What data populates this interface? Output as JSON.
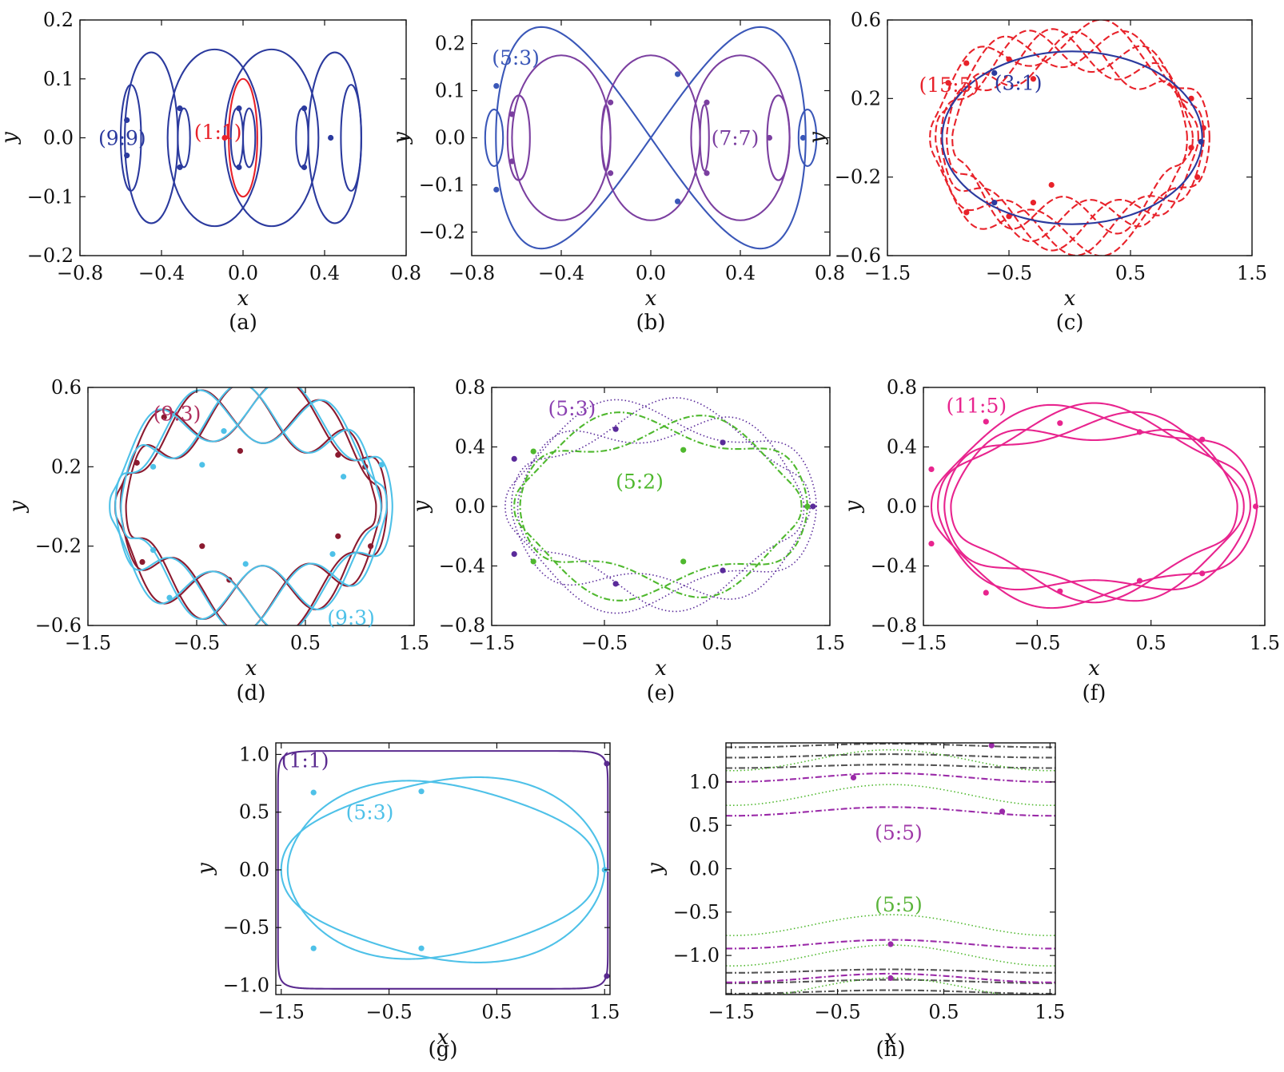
{
  "chart_data": [
    {
      "id": "a",
      "type": "line",
      "caption": "(a)",
      "xlabel": "x",
      "ylabel": "y",
      "xlim": [
        -0.8,
        0.8
      ],
      "ylim": [
        -0.2,
        0.2
      ],
      "xticks": [
        "−0.8",
        "−0.4",
        "0.0",
        "0.4",
        "0.8"
      ],
      "yticks": [
        "0.2",
        "0.1",
        "0.0",
        "−0.1",
        "−0.2"
      ],
      "labels": [
        {
          "text": "(9:9)",
          "x": -0.71,
          "y": 0.0,
          "color": "#2b3a9e"
        },
        {
          "text": "(1:1)",
          "x": -0.24,
          "y": 0.01,
          "color": "#e8222a"
        }
      ],
      "series": [
        {
          "color": "#2b3a9e",
          "kind": "ellipses",
          "ellipses": [
            [
              -0.45,
              0,
              0.13,
              0.145
            ],
            [
              -0.14,
              0,
              0.23,
              0.15
            ],
            [
              0.14,
              0,
              0.23,
              0.15
            ],
            [
              0.45,
              0,
              0.13,
              0.145
            ],
            [
              -0.55,
              0,
              0.05,
              0.09
            ],
            [
              0.53,
              0,
              0.05,
              0.09
            ],
            [
              -0.29,
              0,
              0.03,
              0.05
            ],
            [
              0.29,
              0,
              0.03,
              0.05
            ],
            [
              -0.03,
              0,
              0.03,
              0.05
            ],
            [
              0.03,
              0,
              0.03,
              0.05
            ]
          ],
          "points": [
            [
              -0.57,
              0.03
            ],
            [
              -0.57,
              -0.03
            ],
            [
              -0.31,
              0.05
            ],
            [
              -0.31,
              -0.05
            ],
            [
              0.3,
              0.05
            ],
            [
              0.3,
              -0.05
            ],
            [
              -0.02,
              0.05
            ],
            [
              -0.02,
              -0.05
            ],
            [
              0.43,
              0
            ]
          ]
        },
        {
          "color": "#e8222a",
          "kind": "ellipses",
          "ellipses": [
            [
              0.0,
              0,
              0.07,
              0.1
            ]
          ],
          "points": [
            [
              -0.09,
              0.0
            ]
          ]
        }
      ]
    },
    {
      "id": "b",
      "type": "line",
      "caption": "(b)",
      "xlabel": "x",
      "ylabel": "y",
      "xlim": [
        -0.8,
        0.8
      ],
      "ylim": [
        -0.25,
        0.25
      ],
      "xticks": [
        "−0.8",
        "−0.4",
        "0.0",
        "0.4",
        "0.8"
      ],
      "yticks": [
        "0.2",
        "0.1",
        "0.0",
        "−0.1",
        "−0.2"
      ],
      "labels": [
        {
          "text": "(5:3)",
          "x": -0.71,
          "y": 0.17,
          "color": "#3a57b8"
        },
        {
          "text": "(7:7)",
          "x": 0.27,
          "y": 0.0,
          "color": "#7b3fa0"
        }
      ],
      "series": [
        {
          "color": "#3a57b8",
          "kind": "ellipses",
          "ellipses": [
            [
              -0.7,
              0,
              0.04,
              0.06
            ],
            [
              0.7,
              0,
              0.04,
              0.06
            ]
          ],
          "points": [
            [
              -0.69,
              0.11
            ],
            [
              -0.69,
              -0.11
            ],
            [
              0.68,
              0.0
            ],
            [
              0.12,
              0.135
            ],
            [
              0.12,
              -0.135
            ]
          ]
        },
        {
          "color": "#3a57b8",
          "kind": "figure8",
          "cx": 0.4,
          "rx": 0.4,
          "ry": 0.235
        },
        {
          "color": "#7b3fa0",
          "kind": "ellipses",
          "ellipses": [
            [
              -0.4,
              0,
              0.22,
              0.175
            ],
            [
              0.0,
              0,
              0.22,
              0.175
            ],
            [
              0.4,
              0,
              0.22,
              0.175
            ],
            [
              -0.59,
              0,
              0.05,
              0.09
            ],
            [
              0.57,
              0,
              0.05,
              0.09
            ],
            [
              -0.2,
              0,
              0.02,
              0.07
            ],
            [
              0.24,
              0,
              0.02,
              0.07
            ]
          ],
          "points": [
            [
              -0.62,
              0.05
            ],
            [
              -0.62,
              -0.05
            ],
            [
              -0.18,
              0.075
            ],
            [
              -0.18,
              -0.075
            ],
            [
              0.25,
              0.075
            ],
            [
              0.25,
              -0.075
            ],
            [
              0.53,
              0.0
            ]
          ]
        }
      ]
    },
    {
      "id": "c",
      "type": "line",
      "caption": "(c)",
      "xlabel": "x",
      "ylabel": "y",
      "xlim": [
        -1.5,
        1.5
      ],
      "ylim": [
        -0.6,
        0.6
      ],
      "xticks": [
        "−1.5",
        "−0.5",
        "0.5",
        "1.5"
      ],
      "yticks": [
        "0.6",
        "0.2",
        "−0.2",
        "−0.6"
      ],
      "labels": [
        {
          "text": "(15:5)",
          "x": -1.24,
          "y": 0.27,
          "color": "#e8222a"
        },
        {
          "text": "(3:1)",
          "x": -0.62,
          "y": 0.28,
          "color": "#2b3a9e"
        }
      ],
      "series": [
        {
          "color": "#e8222a",
          "kind": "wavy",
          "style": "dash",
          "rx": 1.15,
          "ry": 0.5,
          "amp": 0.12,
          "waves": 3,
          "copies": 5,
          "points": [
            [
              -1.0,
              0.28
            ],
            [
              -0.85,
              0.38
            ],
            [
              -0.5,
              0.4
            ],
            [
              -0.3,
              0.3
            ],
            [
              1.0,
              0.2
            ],
            [
              1.1,
              0.05
            ],
            [
              1.05,
              -0.2
            ],
            [
              -0.85,
              -0.38
            ],
            [
              -0.5,
              -0.4
            ],
            [
              -0.3,
              -0.33
            ],
            [
              -0.15,
              -0.24
            ],
            [
              1.0,
              -0.05
            ]
          ]
        },
        {
          "color": "#2b3a9e",
          "kind": "ellipses",
          "ellipses": [
            [
              0.02,
              0,
              1.07,
              0.44
            ]
          ],
          "points": [
            [
              -0.62,
              0.33
            ],
            [
              -0.62,
              -0.33
            ],
            [
              1.08,
              -0.02
            ]
          ]
        }
      ]
    },
    {
      "id": "d",
      "type": "line",
      "caption": "(d)",
      "xlabel": "x",
      "ylabel": "y",
      "xlim": [
        -1.5,
        1.5
      ],
      "ylim": [
        -0.6,
        0.6
      ],
      "xticks": [
        "−1.5",
        "−0.5",
        "0.5",
        "1.5"
      ],
      "yticks": [
        "0.6",
        "0.2",
        "−0.2",
        "−0.6"
      ],
      "labels": [
        {
          "text": "(9:3)",
          "x": -0.9,
          "y": 0.47,
          "color": "#b03060"
        },
        {
          "text": "(9:3)",
          "x": 0.7,
          "y": -0.56,
          "color": "#4ec1e8"
        }
      ],
      "series": [
        {
          "color": "#8b1a2f",
          "kind": "wavy",
          "style": "solid",
          "rx": 1.25,
          "ry": 0.5,
          "amp": 0.16,
          "waves": 3,
          "copies": 3,
          "points": [
            [
              -0.8,
              0.45
            ],
            [
              -1.05,
              0.22
            ],
            [
              -0.1,
              0.28
            ],
            [
              0.8,
              0.26
            ],
            [
              1.05,
              0.2
            ],
            [
              -0.45,
              -0.2
            ],
            [
              0.8,
              -0.15
            ],
            [
              -1.0,
              -0.28
            ],
            [
              -0.2,
              -0.37
            ],
            [
              1.1,
              -0.2
            ]
          ]
        },
        {
          "color": "#4ec1e8",
          "kind": "wavy",
          "style": "solid",
          "rx": 1.3,
          "ry": 0.5,
          "amp": 0.16,
          "waves": 3,
          "copies": 3,
          "points": [
            [
              -0.25,
              0.38
            ],
            [
              -0.45,
              0.21
            ],
            [
              -0.9,
              0.2
            ],
            [
              0.85,
              0.15
            ],
            [
              1.2,
              0.21
            ],
            [
              -0.9,
              -0.22
            ],
            [
              -0.05,
              -0.29
            ],
            [
              0.75,
              -0.24
            ],
            [
              -0.75,
              -0.46
            ]
          ]
        }
      ]
    },
    {
      "id": "e",
      "type": "line",
      "caption": "(e)",
      "xlabel": "x",
      "ylabel": "y",
      "xlim": [
        -1.5,
        1.5
      ],
      "ylim": [
        -0.8,
        0.8
      ],
      "xticks": [
        "−1.5",
        "−0.5",
        "0.5",
        "1.5"
      ],
      "yticks": [
        "0.8",
        "0.4",
        "0.0",
        "−0.4",
        "−0.8"
      ],
      "labels": [
        {
          "text": "(5:3)",
          "x": -1.0,
          "y": 0.66,
          "color": "#8a3fb0"
        },
        {
          "text": "(5:2)",
          "x": -0.4,
          "y": 0.17,
          "color": "#4fb82e"
        }
      ],
      "series": [
        {
          "color": "#5a2a9a",
          "kind": "wavy",
          "style": "dot",
          "rx": 1.38,
          "ry": 0.62,
          "amp": 0.14,
          "waves": 2,
          "copies": 3,
          "points": [
            [
              -1.3,
              0.32
            ],
            [
              -0.4,
              0.52
            ],
            [
              0.55,
              0.43
            ],
            [
              1.35,
              0.0
            ],
            [
              -1.3,
              -0.32
            ],
            [
              -0.4,
              -0.52
            ],
            [
              0.55,
              -0.43
            ]
          ]
        },
        {
          "color": "#4fb82e",
          "kind": "wavy",
          "style": "dashdot",
          "rx": 1.3,
          "ry": 0.55,
          "amp": 0.12,
          "waves": 2,
          "copies": 2,
          "points": [
            [
              -1.13,
              0.37
            ],
            [
              0.2,
              0.38
            ],
            [
              1.3,
              0.0
            ],
            [
              -1.13,
              -0.37
            ],
            [
              0.2,
              -0.37
            ]
          ]
        }
      ]
    },
    {
      "id": "f",
      "type": "line",
      "caption": "(f)",
      "xlabel": "x",
      "ylabel": "y",
      "xlim": [
        -1.5,
        1.5
      ],
      "ylim": [
        -0.8,
        0.8
      ],
      "xticks": [
        "−1.5",
        "−0.5",
        "0.5",
        "1.5"
      ],
      "yticks": [
        "0.8",
        "0.4",
        "0.0",
        "−0.4",
        "−0.8"
      ],
      "labels": [
        {
          "text": "(11:5)",
          "x": -1.3,
          "y": 0.68,
          "color": "#e8248e"
        }
      ],
      "series": [
        {
          "color": "#e8248e",
          "kind": "wavy",
          "style": "solid",
          "rx": 1.43,
          "ry": 0.62,
          "amp": 0.1,
          "waves": 2,
          "copies": 4,
          "points": [
            [
              -0.95,
              0.57
            ],
            [
              -0.3,
              0.56
            ],
            [
              0.4,
              0.5
            ],
            [
              0.95,
              0.45
            ],
            [
              1.42,
              0.0
            ],
            [
              -0.95,
              -0.58
            ],
            [
              -0.3,
              -0.57
            ],
            [
              0.4,
              -0.5
            ],
            [
              0.95,
              -0.45
            ],
            [
              -1.43,
              0.25
            ],
            [
              -1.43,
              -0.25
            ]
          ]
        }
      ]
    },
    {
      "id": "g",
      "type": "line",
      "caption": "(g)",
      "xlabel": "x",
      "ylabel": "y",
      "xlim": [
        -1.55,
        1.55
      ],
      "ylim": [
        -1.08,
        1.1
      ],
      "xticks": [
        "−1.5",
        "−0.5",
        "0.5",
        "1.5"
      ],
      "yticks": [
        "1.0",
        "0.5",
        "0.0",
        "−0.5",
        "−1.0"
      ],
      "labels": [
        {
          "text": "(1:1)",
          "x": -1.5,
          "y": 0.95,
          "color": "#5a2a8f"
        },
        {
          "text": "(5:3)",
          "x": -0.9,
          "y": 0.5,
          "color": "#4ec1e8"
        }
      ],
      "series": [
        {
          "color": "#5a2a8f",
          "kind": "rectlike",
          "rx": 1.53,
          "ry": 1.03,
          "points": [
            [
              1.52,
              0.92
            ],
            [
              1.52,
              -0.92
            ]
          ]
        },
        {
          "color": "#4ec1e8",
          "kind": "wavy",
          "style": "solid",
          "rx": 1.5,
          "ry": 0.78,
          "amp": 0.1,
          "waves": 1,
          "copies": 2,
          "points": [
            [
              -1.2,
              0.67
            ],
            [
              -0.2,
              0.68
            ],
            [
              1.5,
              0.0
            ],
            [
              -1.2,
              -0.68
            ],
            [
              -0.2,
              -0.68
            ]
          ]
        }
      ]
    },
    {
      "id": "h",
      "type": "line",
      "caption": "(h)",
      "xlabel": "x",
      "ylabel": "y",
      "xlim": [
        -1.55,
        1.55
      ],
      "ylim": [
        -1.45,
        1.45
      ],
      "xticks": [
        "−1.5",
        "−0.5",
        "0.5",
        "1.5"
      ],
      "yticks": [
        "1.0",
        "0.5",
        "0.0",
        "−0.5",
        "−1.0"
      ],
      "labels": [
        {
          "text": "(5:5)",
          "x": -0.15,
          "y": 0.42,
          "color": "#a03aa8"
        },
        {
          "text": "(5:5)",
          "x": -0.15,
          "y": -0.41,
          "color": "#5ab43a"
        }
      ],
      "series": [
        {
          "color": "#555555",
          "kind": "bands",
          "style": "dashdot",
          "levels": [
            1.42,
            1.3,
            1.18,
            -1.18,
            -1.3,
            -1.42
          ],
          "amp": 0.02
        },
        {
          "color": "#4fb82e",
          "kind": "bands",
          "style": "dot",
          "levels": [
            1.25,
            0.85,
            -0.65,
            -1.0,
            -1.38
          ],
          "amp": 0.12
        },
        {
          "color": "#9a2aa8",
          "kind": "bands",
          "style": "dashdot",
          "levels": [
            1.05,
            0.66,
            -0.87,
            -1.26
          ],
          "amp": 0.05,
          "points": [
            [
              0.95,
              1.42
            ],
            [
              -0.35,
              1.05
            ],
            [
              1.05,
              0.66
            ],
            [
              0.0,
              -0.87
            ],
            [
              0.0,
              -1.26
            ]
          ]
        }
      ]
    }
  ]
}
